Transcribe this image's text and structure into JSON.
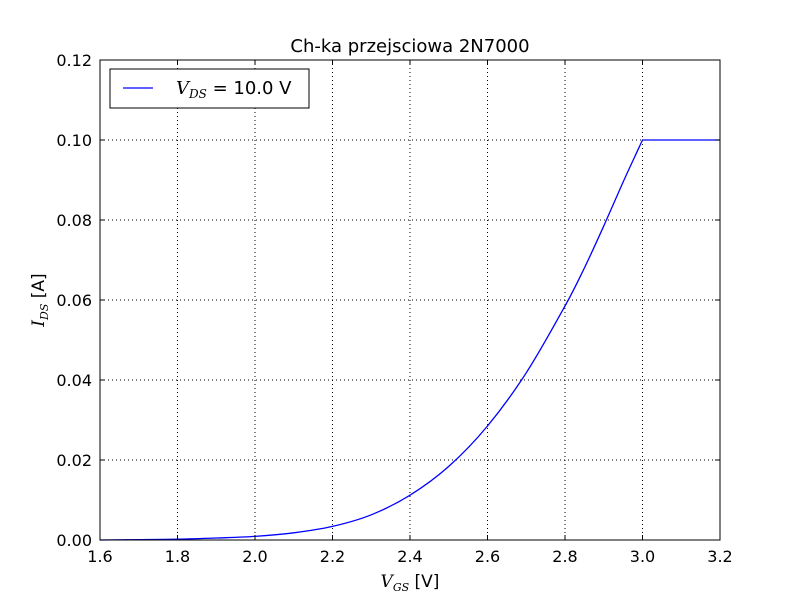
{
  "chart_data": {
    "type": "line",
    "title": "Ch-ka przejsciowa 2N7000",
    "xlabel": {
      "symbol": "V",
      "subscript": "GS",
      "unit": " [V]"
    },
    "ylabel": {
      "symbol": "I",
      "subscript": "DS",
      "unit": " [A]"
    },
    "xlim": [
      1.6,
      3.2
    ],
    "ylim": [
      0.0,
      0.12
    ],
    "xticks": [
      1.6,
      1.8,
      2.0,
      2.2,
      2.4,
      2.6,
      2.8,
      3.0,
      3.2
    ],
    "xtick_labels": [
      "1.6",
      "1.8",
      "2.0",
      "2.2",
      "2.4",
      "2.6",
      "2.8",
      "3.0",
      "3.2"
    ],
    "yticks": [
      0.0,
      0.02,
      0.04,
      0.06,
      0.08,
      0.1,
      0.12
    ],
    "ytick_labels": [
      "0.00",
      "0.02",
      "0.04",
      "0.06",
      "0.08",
      "0.10",
      "0.12"
    ],
    "grid": true,
    "legend_position": "top-left",
    "series": [
      {
        "name": {
          "symbol": "V",
          "subscript": "DS",
          "rest": " = 10.0 V"
        },
        "color": "#0000ff",
        "x": [
          1.6,
          1.7,
          1.8,
          1.9,
          2.0,
          2.1,
          2.2,
          2.3,
          2.4,
          2.5,
          2.6,
          2.7,
          2.8,
          2.85,
          2.9,
          2.95,
          3.0,
          3.1,
          3.2
        ],
        "y": [
          0.0,
          0.0001,
          0.0002,
          0.0005,
          0.0009,
          0.0018,
          0.0034,
          0.0063,
          0.0112,
          0.0184,
          0.0285,
          0.0418,
          0.0585,
          0.068,
          0.0785,
          0.0895,
          0.1,
          0.1,
          0.1
        ]
      }
    ]
  }
}
